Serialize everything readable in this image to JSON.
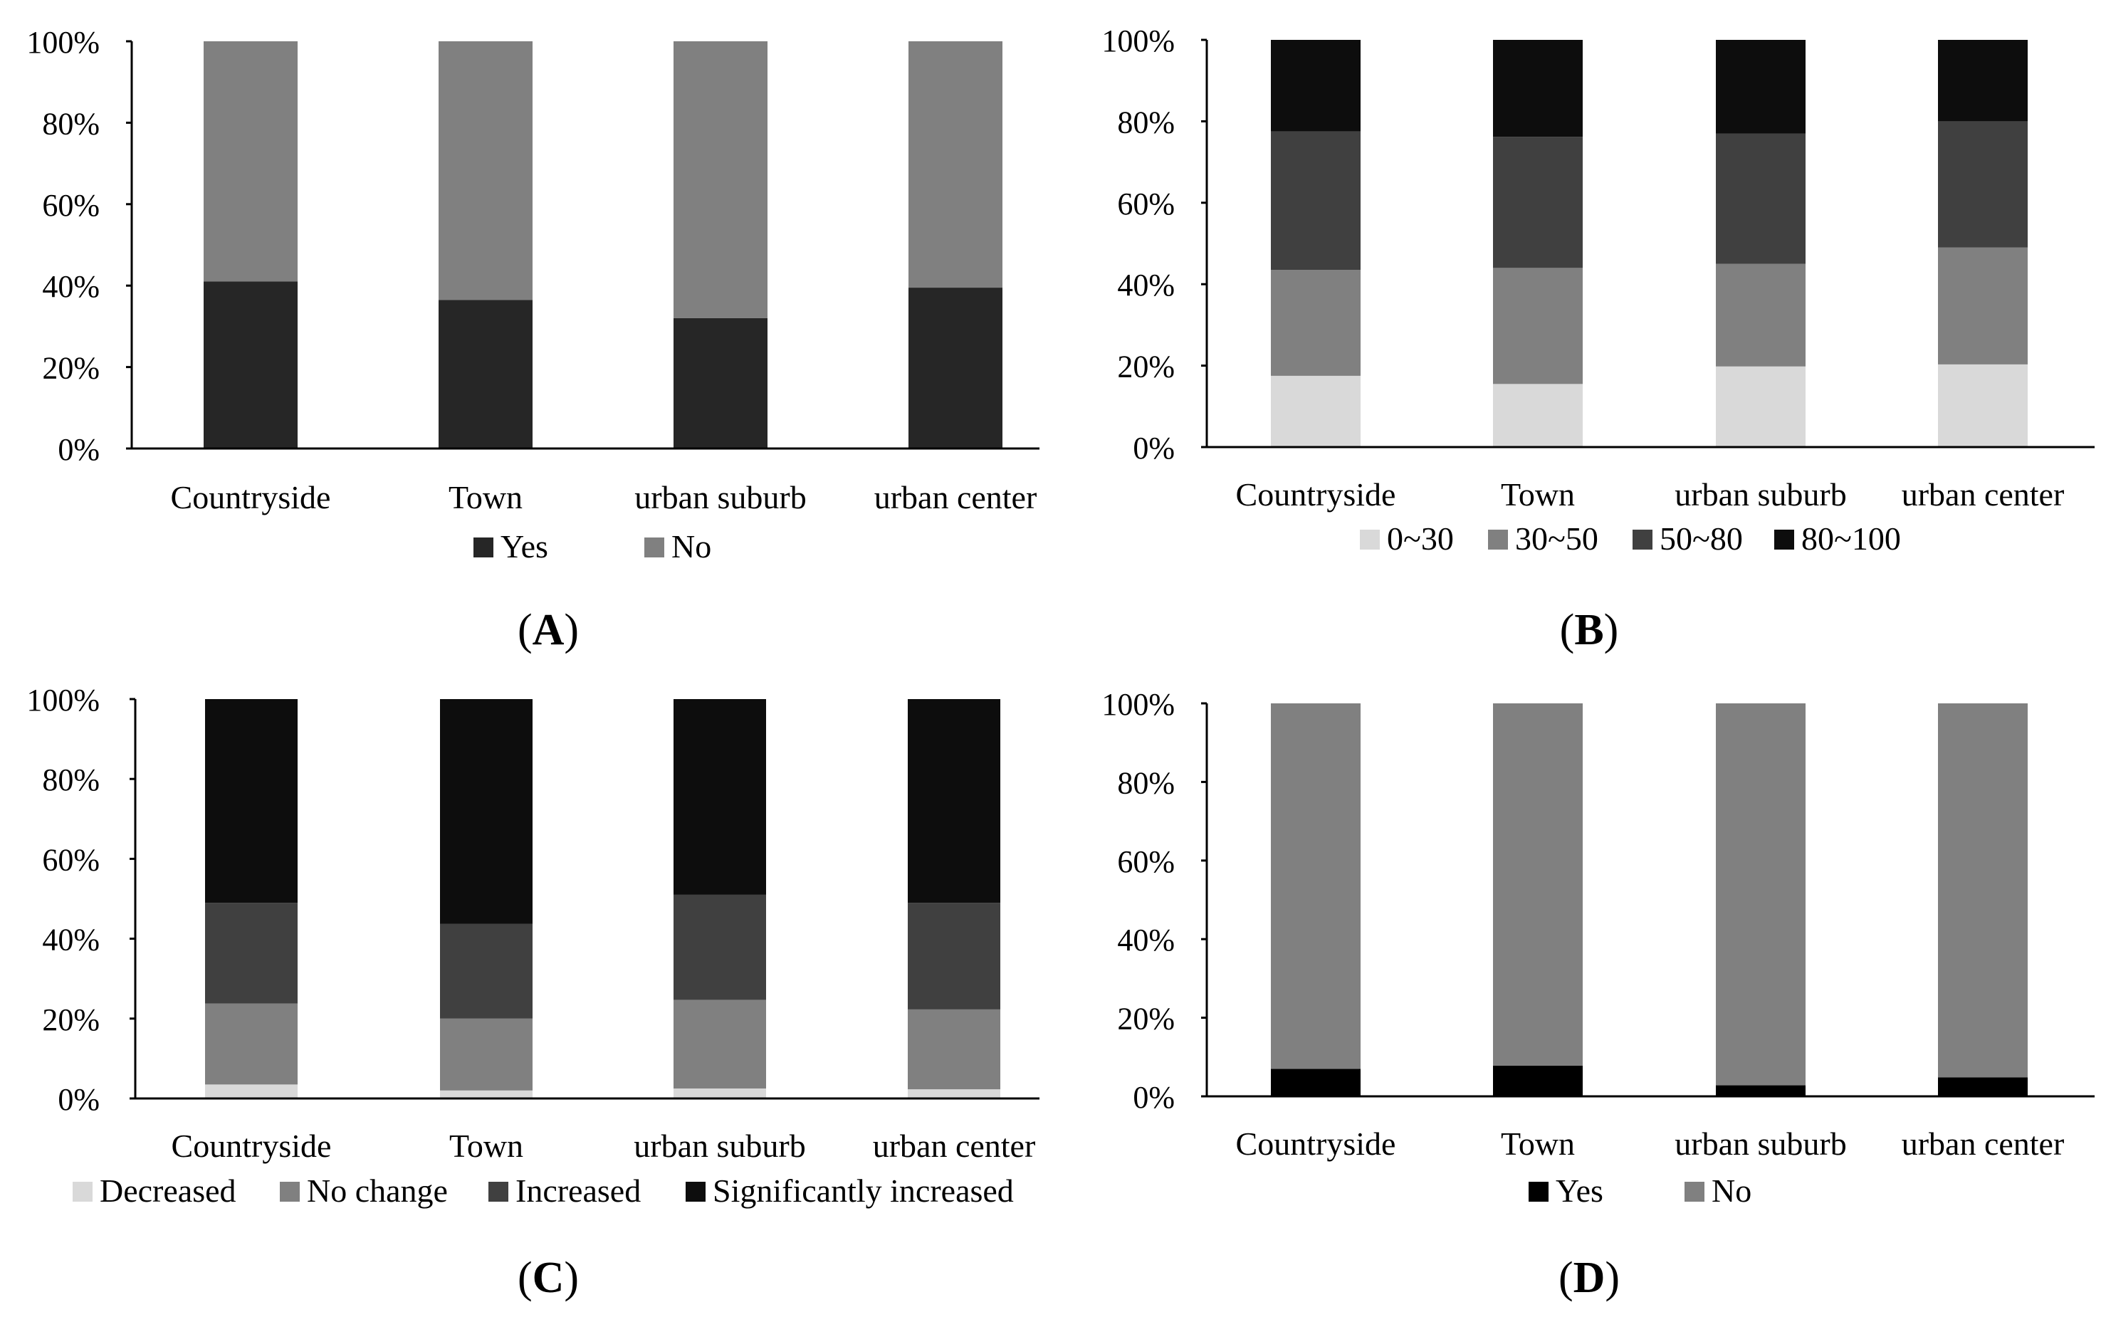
{
  "colors": {
    "yes": "#262626",
    "no": "#808080",
    "yes_d": "#000000",
    "light": "#d9d9d9",
    "mid": "#808080",
    "dark": "#404040",
    "black": "#0d0d0d",
    "axis": "#000000"
  },
  "panels": [
    {
      "letter": "A"
    },
    {
      "letter": "B"
    },
    {
      "letter": "C"
    },
    {
      "letter": "D"
    }
  ],
  "chart_data": [
    {
      "panel": "A",
      "type": "bar",
      "stacked": true,
      "normalized": true,
      "categories": [
        "Countryside",
        "Town",
        "urban suburb",
        "urban center"
      ],
      "yticks": [
        "0%",
        "20%",
        "40%",
        "60%",
        "80%",
        "100%"
      ],
      "ylim": [
        0,
        100
      ],
      "series": [
        {
          "name": "Yes",
          "color_key": "yes",
          "values": [
            41,
            36.5,
            32,
            39.5
          ]
        },
        {
          "name": "No",
          "color_key": "no",
          "values": [
            59,
            63.5,
            68,
            60.5
          ]
        }
      ],
      "legend": "bottom"
    },
    {
      "panel": "B",
      "type": "bar",
      "stacked": true,
      "normalized": true,
      "categories": [
        "Countryside",
        "Town",
        "urban suburb",
        "urban center"
      ],
      "yticks": [
        "0%",
        "20%",
        "40%",
        "60%",
        "80%",
        "100%"
      ],
      "ylim": [
        0,
        100
      ],
      "series": [
        {
          "name": "0~30",
          "color_key": "light",
          "values": [
            17.5,
            15.5,
            19.8,
            20.3
          ]
        },
        {
          "name": "30~50",
          "color_key": "mid",
          "values": [
            26,
            28.5,
            25.2,
            28.7
          ]
        },
        {
          "name": "50~80",
          "color_key": "dark",
          "values": [
            34,
            32.2,
            32,
            31
          ]
        },
        {
          "name": "80~100",
          "color_key": "black",
          "values": [
            22.5,
            23.8,
            23,
            20
          ]
        }
      ],
      "legend": "bottom"
    },
    {
      "panel": "C",
      "type": "bar",
      "stacked": true,
      "normalized": true,
      "categories": [
        "Countryside",
        "Town",
        "urban suburb",
        "urban center"
      ],
      "yticks": [
        "0%",
        "20%",
        "40%",
        "60%",
        "80%",
        "100%"
      ],
      "ylim": [
        0,
        100
      ],
      "series": [
        {
          "name": "Decreased",
          "color_key": "light",
          "values": [
            3.5,
            2,
            2.5,
            2.3
          ]
        },
        {
          "name": "No change",
          "color_key": "mid",
          "values": [
            20.3,
            18,
            22.2,
            20
          ]
        },
        {
          "name": "Increased",
          "color_key": "dark",
          "values": [
            25.2,
            23.7,
            26.3,
            26.7
          ]
        },
        {
          "name": "Significantly increased",
          "color_key": "black",
          "values": [
            51,
            56.3,
            49,
            51
          ]
        }
      ],
      "legend": "bottom"
    },
    {
      "panel": "D",
      "type": "bar",
      "stacked": true,
      "normalized": true,
      "categories": [
        "Countryside",
        "Town",
        "urban suburb",
        "urban center"
      ],
      "yticks": [
        "0%",
        "20%",
        "40%",
        "60%",
        "80%",
        "100%"
      ],
      "ylim": [
        0,
        100
      ],
      "series": [
        {
          "name": "Yes",
          "color_key": "yes_d",
          "values": [
            7,
            7.8,
            2.8,
            4.8
          ]
        },
        {
          "name": "No",
          "color_key": "no",
          "values": [
            93,
            92.2,
            97.2,
            95.2
          ]
        }
      ],
      "legend": "bottom"
    }
  ]
}
